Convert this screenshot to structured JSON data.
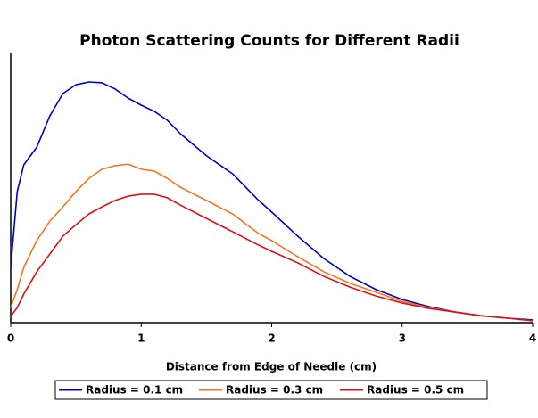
{
  "chart_data": {
    "type": "line",
    "title": "Photon Scattering Counts for Different Radii",
    "xlabel": "Distance from Edge of Needle (cm)",
    "x": [
      0,
      0.05,
      0.1,
      0.2,
      0.3,
      0.4,
      0.5,
      0.6,
      0.7,
      0.8,
      0.9,
      1.0,
      1.1,
      1.2,
      1.3,
      1.5,
      1.7,
      1.9,
      2.0,
      2.2,
      2.4,
      2.6,
      2.8,
      3.0,
      3.2,
      3.4,
      3.6,
      3.8,
      4.0
    ],
    "series": [
      {
        "name": "Radius = 0.1 cm",
        "color": "#0000cc",
        "values": [
          20.5,
          48.7,
          58.6,
          65.2,
          76.8,
          85.1,
          88.4,
          89.4,
          89.1,
          86.8,
          83.4,
          80.8,
          78.5,
          75.2,
          70.2,
          62.0,
          55.3,
          45.4,
          41.1,
          32.1,
          23.8,
          17.2,
          12.3,
          8.6,
          6.0,
          4.0,
          2.6,
          1.7,
          1.0
        ]
      },
      {
        "name": "Radius = 0.3 cm",
        "color": "#f07820",
        "values": [
          5.6,
          12.3,
          20.5,
          30.5,
          37.7,
          43.0,
          48.7,
          53.6,
          57.0,
          58.3,
          58.9,
          57.0,
          56.3,
          53.6,
          50.3,
          45.4,
          40.4,
          33.1,
          30.5,
          24.5,
          18.9,
          14.6,
          11.3,
          7.9,
          5.6,
          4.0,
          2.6,
          1.7,
          0.7
        ]
      },
      {
        "name": "Radius = 0.5 cm",
        "color": "#e01010",
        "values": [
          2.3,
          5.6,
          10.6,
          18.9,
          25.5,
          32.1,
          36.4,
          40.4,
          43.0,
          45.4,
          47.0,
          47.7,
          47.7,
          46.4,
          43.7,
          38.7,
          33.8,
          28.8,
          26.5,
          22.2,
          17.2,
          13.2,
          9.9,
          7.3,
          5.3,
          4.0,
          2.6,
          1.7,
          0.7
        ]
      }
    ],
    "xlim": [
      0,
      4
    ],
    "xticks": [
      0,
      1,
      2,
      3,
      4
    ],
    "ylim": [
      0,
      100
    ],
    "legend": "bottom"
  }
}
